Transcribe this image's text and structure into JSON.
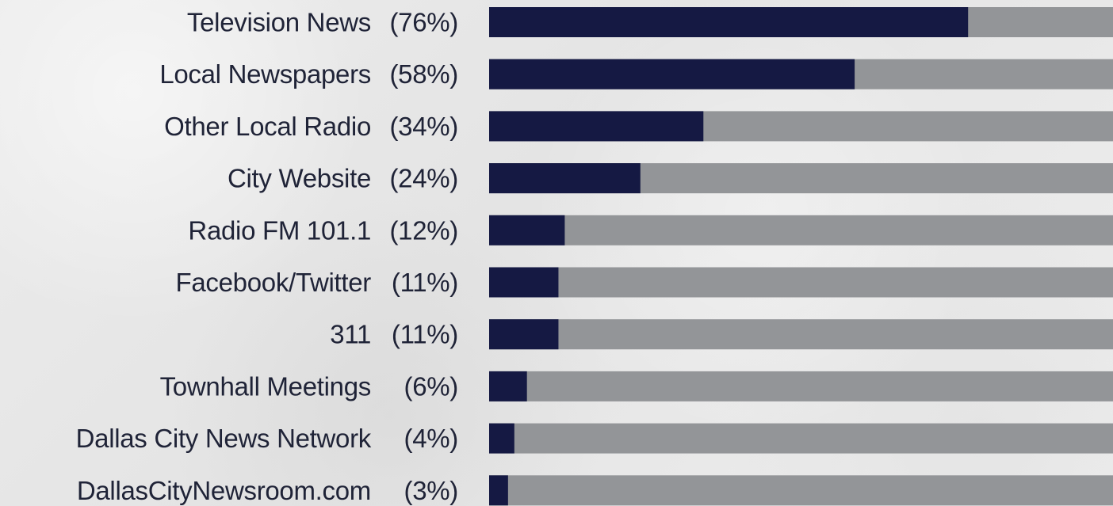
{
  "chart_data": {
    "type": "bar",
    "orientation": "horizontal",
    "categories": [
      "Television News",
      "Local Newspapers",
      "Other Local Radio",
      "City Website",
      "Radio FM 101.1",
      "Facebook/Twitter",
      "311",
      "Townhall Meetings",
      "Dallas City News Network",
      "DallasCityNewsroom.com"
    ],
    "values": [
      76,
      58,
      34,
      24,
      12,
      11,
      11,
      6,
      4,
      3
    ],
    "value_labels": [
      "(76%)",
      "(58%)",
      "(34%)",
      "(24%)",
      "(12%)",
      "(11%)",
      "(11%)",
      "(6%)",
      "(4%)",
      "(3%)"
    ],
    "xlim": [
      0,
      100
    ],
    "grid": false,
    "colors": {
      "bar": "#151943",
      "track": "#939598",
      "text": "#1f2337"
    }
  }
}
